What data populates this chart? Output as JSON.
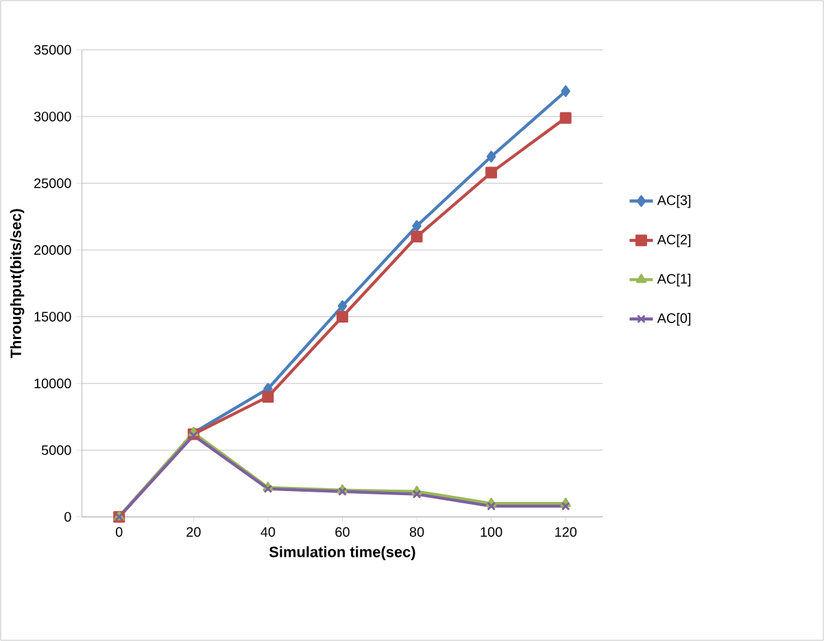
{
  "chart_data": {
    "type": "line",
    "xlabel": "Simulation time(sec)",
    "ylabel": "Throughput(bits/sec)",
    "categories": [
      "0",
      "20",
      "40",
      "60",
      "80",
      "100",
      "120"
    ],
    "ylim": [
      0,
      35000
    ],
    "yticks": [
      0,
      5000,
      10000,
      15000,
      20000,
      25000,
      30000,
      35000
    ],
    "grid": "y",
    "legend": "right",
    "line_style": "solid",
    "series": [
      {
        "name": "AC[3]",
        "color": "#4a7ebb",
        "marker": "diamond",
        "values": [
          0,
          6300,
          9600,
          15800,
          21800,
          27000,
          31900
        ]
      },
      {
        "name": "AC[2]",
        "color": "#be4b48",
        "marker": "square",
        "values": [
          0,
          6200,
          9000,
          15000,
          21000,
          25800,
          29900
        ]
      },
      {
        "name": "AC[1]",
        "color": "#98b954",
        "marker": "triangle",
        "values": [
          0,
          6300,
          2200,
          2000,
          1900,
          1000,
          1000
        ]
      },
      {
        "name": "AC[0]",
        "color": "#7d60a0",
        "marker": "cross",
        "values": [
          0,
          6100,
          2100,
          1900,
          1700,
          800,
          800
        ]
      }
    ]
  }
}
